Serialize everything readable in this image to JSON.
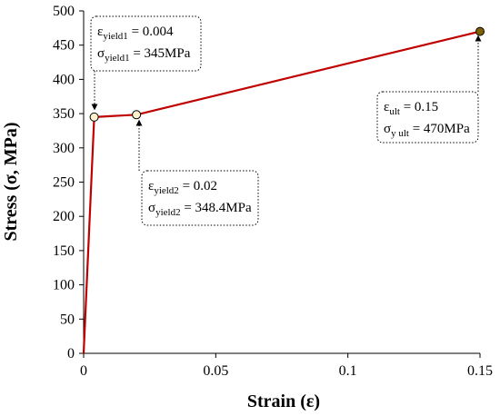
{
  "chart_data": {
    "type": "line",
    "xlabel": "Strain (ε)",
    "ylabel": "Stress (σ, MPa)",
    "xlim": [
      0,
      0.15
    ],
    "ylim": [
      0,
      500
    ],
    "xticks": [
      "0",
      "0.05",
      "0.1",
      "0.15"
    ],
    "yticks": [
      "0",
      "50",
      "100",
      "150",
      "200",
      "250",
      "300",
      "350",
      "400",
      "450",
      "500"
    ],
    "grid": false,
    "line_color": "#c00000",
    "series": [
      {
        "x": [
          0,
          0.004,
          0.02,
          0.15
        ],
        "y": [
          0,
          345,
          348.4,
          470
        ]
      }
    ],
    "markers": [
      {
        "x": 0.004,
        "y": 345,
        "fill": "#fff2cc"
      },
      {
        "x": 0.02,
        "y": 348.4,
        "fill": "#fff2cc"
      },
      {
        "x": 0.15,
        "y": 470,
        "fill": "#7f6000"
      }
    ],
    "annotations": [
      {
        "line1": {
          "sym": "ε",
          "sub": "yield1",
          "rest": " = 0.004"
        },
        "line2": {
          "sym": "σ",
          "sub": "yield1",
          "rest": " = 345MPa"
        }
      },
      {
        "line1": {
          "sym": "ε",
          "sub": "yield2",
          "rest": " = 0.02"
        },
        "line2": {
          "sym": "σ",
          "sub": "yield2",
          "rest": " = 348.4MPa"
        }
      },
      {
        "line1": {
          "sym": "ε",
          "sub": "ult",
          "rest": " = 0.15"
        },
        "line2": {
          "sym": "σ",
          "sub": "y ult",
          "rest": " = 470MPa"
        }
      }
    ]
  }
}
